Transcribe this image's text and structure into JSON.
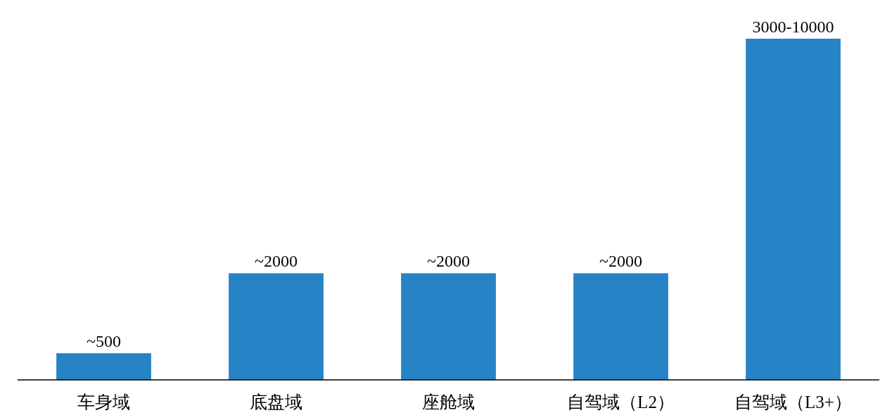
{
  "chart_data": {
    "type": "bar",
    "categories": [
      "车身域",
      "底盘域",
      "座舱域",
      "自驾域（L2）",
      "自驾域（L3+）"
    ],
    "values": [
      500,
      2000,
      2000,
      2000,
      6400
    ],
    "value_labels": [
      "~500",
      "~2000",
      "~2000",
      "~2000",
      "3000-10000"
    ],
    "ylim": [
      0,
      6400
    ],
    "color": "#2683c6"
  }
}
